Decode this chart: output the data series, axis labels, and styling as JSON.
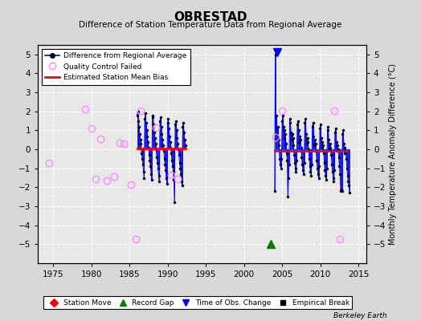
{
  "title": "OBRESTAD",
  "subtitle": "Difference of Station Temperature Data from Regional Average",
  "ylabel_right": "Monthly Temperature Anomaly Difference (°C)",
  "xlim": [
    1973,
    2016
  ],
  "ylim": [
    -6,
    5.5
  ],
  "yticks": [
    -5,
    -4,
    -3,
    -2,
    -1,
    0,
    1,
    2,
    3,
    4,
    5
  ],
  "xticks": [
    1975,
    1980,
    1985,
    1990,
    1995,
    2000,
    2005,
    2010,
    2015
  ],
  "plot_bg_color": "#e8e8e8",
  "fig_bg_color": "#d8d8d8",
  "grid_color": "white",
  "watermark": "Berkeley Earth",
  "segment1_bias": 0.05,
  "segment1_start": 1986.0,
  "segment1_end": 1992.3,
  "segment2_bias": -0.1,
  "segment2_start": 2004.0,
  "segment2_end": 2013.5,
  "record_gap_x": 2003.5,
  "record_gap_y": -5.0,
  "time_obs_change_x": 2004.3,
  "time_obs_change_y": 5.1,
  "sparse_qc_points": [
    [
      1974.5,
      -0.7
    ],
    [
      1979.2,
      2.1
    ],
    [
      1980.0,
      1.1
    ],
    [
      1980.6,
      -1.55
    ],
    [
      1981.2,
      0.55
    ],
    [
      1982.0,
      -1.65
    ],
    [
      1983.0,
      -1.45
    ],
    [
      1983.7,
      0.35
    ],
    [
      1984.2,
      0.3
    ],
    [
      1985.2,
      -1.85
    ],
    [
      1985.8,
      -4.75
    ],
    [
      1986.5,
      2.05
    ],
    [
      1988.5,
      1.15
    ],
    [
      1990.5,
      -1.35
    ],
    [
      1991.3,
      -1.55
    ],
    [
      2004.1,
      0.65
    ],
    [
      2005.0,
      2.05
    ],
    [
      2011.8,
      2.05
    ],
    [
      2012.5,
      -4.75
    ]
  ],
  "dense_segment1": {
    "x_start": 1986.0,
    "x_end": 1992.3,
    "monthly_values": [
      1.8,
      2.0,
      1.5,
      1.2,
      0.8,
      0.5,
      0.3,
      -0.2,
      -0.5,
      -0.8,
      -1.2,
      -1.5,
      1.6,
      1.9,
      1.4,
      1.0,
      0.7,
      0.4,
      0.1,
      -0.3,
      -0.6,
      -0.9,
      -1.3,
      -1.6,
      1.7,
      1.8,
      1.3,
      0.9,
      0.6,
      0.3,
      0.0,
      -0.4,
      -0.7,
      -1.0,
      -1.4,
      -1.7,
      1.5,
      1.7,
      1.2,
      0.8,
      0.5,
      0.2,
      -0.1,
      -0.5,
      -0.8,
      -1.1,
      -1.5,
      -1.8,
      1.4,
      1.6,
      1.1,
      0.7,
      0.4,
      0.1,
      -0.2,
      -0.6,
      -0.9,
      -1.2,
      -1.6,
      -2.8,
      1.3,
      1.5,
      1.0,
      0.6,
      0.3,
      0.0,
      -0.3,
      -0.7,
      -1.0,
      -1.3,
      -1.7,
      -1.9,
      1.2,
      1.4,
      0.9,
      0.5,
      0.2
    ]
  },
  "dense_segment2": {
    "x_start": 2004.0,
    "x_end": 2013.8,
    "monthly_values": [
      -2.2,
      5.0,
      0.5,
      1.8,
      0.8,
      1.2,
      0.5,
      0.2,
      -0.5,
      -0.8,
      -1.0,
      -0.5,
      1.5,
      1.8,
      1.2,
      0.6,
      1.0,
      0.8,
      0.3,
      -0.2,
      -0.6,
      -2.5,
      -1.5,
      -0.8,
      1.6,
      1.4,
      0.9,
      0.5,
      0.8,
      0.6,
      0.2,
      -0.3,
      -0.7,
      -1.0,
      -1.2,
      -0.6,
      1.3,
      1.5,
      1.0,
      0.4,
      0.7,
      0.5,
      0.1,
      -0.4,
      -0.8,
      -1.1,
      -1.3,
      -0.7,
      1.4,
      1.6,
      0.8,
      0.3,
      0.6,
      0.4,
      0.0,
      -0.5,
      -0.9,
      -1.2,
      -1.4,
      -0.8,
      1.2,
      1.4,
      0.7,
      0.2,
      0.5,
      0.3,
      -0.1,
      -0.6,
      -1.0,
      -1.3,
      -1.5,
      -0.9,
      1.1,
      1.3,
      0.6,
      0.1,
      0.4,
      0.2,
      -0.2,
      -0.7,
      -1.1,
      -1.4,
      -1.6,
      -1.0,
      1.0,
      1.2,
      0.5,
      0.0,
      0.3,
      0.1,
      -0.3,
      -0.8,
      -1.2,
      -1.5,
      -1.7,
      -1.1,
      0.9,
      1.1,
      0.4,
      -0.1,
      0.2,
      0.0,
      -0.4,
      -0.9,
      -1.3,
      -2.2,
      -2.1,
      -2.2,
      0.8,
      1.0,
      0.3,
      -0.2,
      0.1,
      -0.1,
      -0.5,
      -1.0,
      -1.4,
      -1.7,
      -1.9,
      -2.3
    ]
  }
}
